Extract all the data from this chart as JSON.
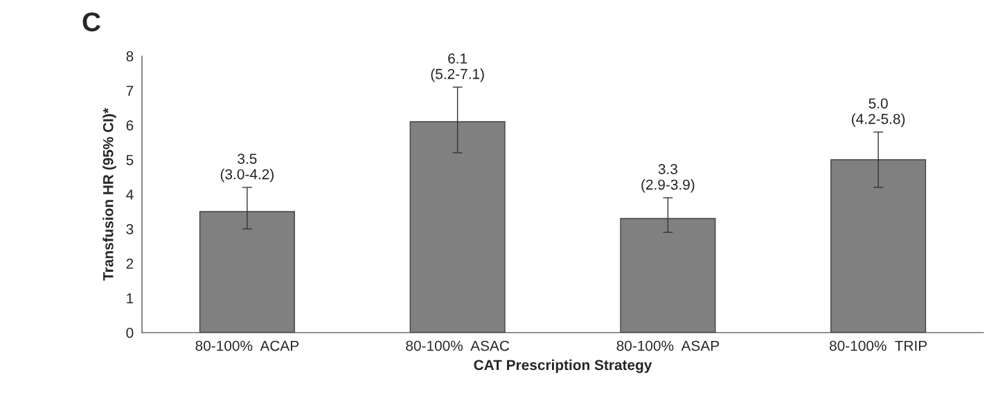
{
  "chart_data": {
    "type": "bar",
    "title": "C",
    "xlabel": "CAT Prescription Strategy",
    "ylabel": "Transfusion HR (95% CI)*",
    "categories": [
      "80-100%  ACAP",
      "80-100%  ASAC",
      "80-100%  ASAP",
      "80-100%  TRIP"
    ],
    "values": [
      3.5,
      6.1,
      3.3,
      5.0
    ],
    "errors": [
      [
        3.0,
        4.2
      ],
      [
        5.2,
        7.1
      ],
      [
        2.9,
        3.9
      ],
      [
        4.2,
        5.8
      ]
    ],
    "value_labels": [
      "3.5\n(3.0-4.2)",
      "6.1\n(5.2-7.1)",
      "3.3\n(2.9-3.9)",
      "5.0\n(4.2-5.8)"
    ],
    "color": "#808080",
    "ylim": [
      0,
      8
    ],
    "yticks": [
      0,
      1,
      2,
      3,
      4,
      5,
      6,
      7,
      8
    ],
    "grid": false,
    "legend": false
  }
}
